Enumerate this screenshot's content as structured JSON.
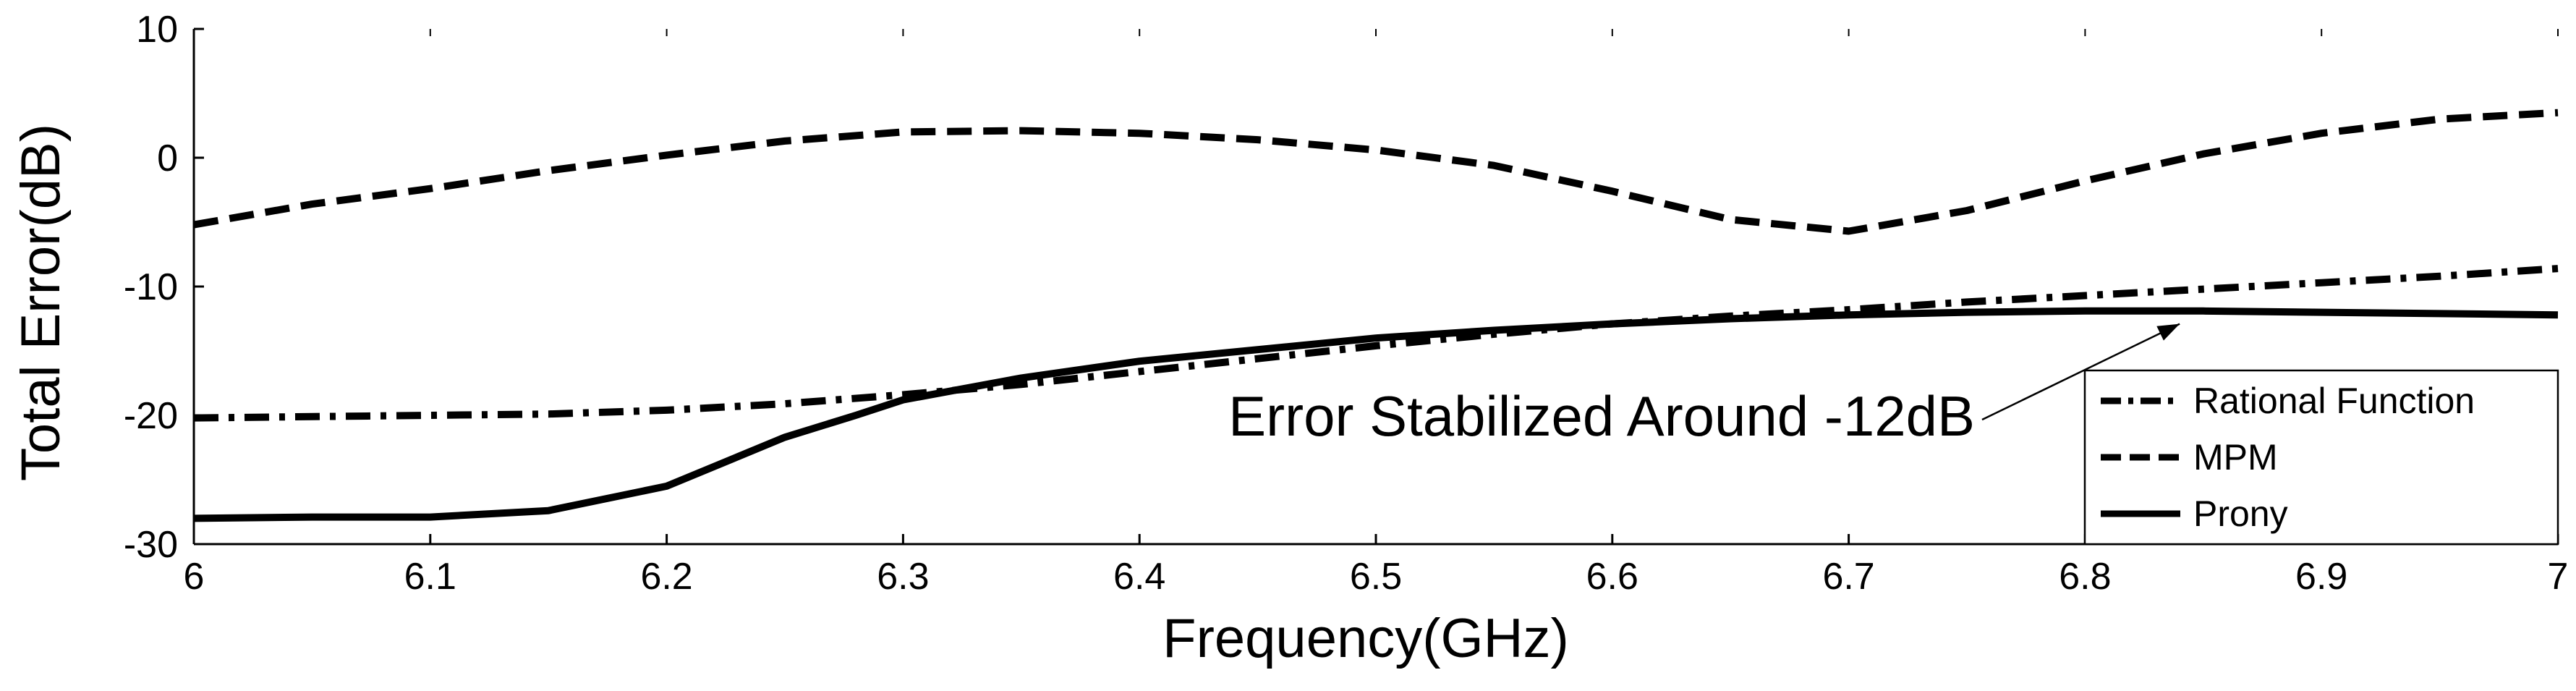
{
  "chart_data": {
    "type": "line",
    "title": "",
    "xlabel": "Frequency(GHz)",
    "ylabel": "Total Error(dB)",
    "xlim": [
      6,
      7
    ],
    "ylim": [
      -30,
      10
    ],
    "xticks": [
      "6",
      "6.1",
      "6.2",
      "6.3",
      "6.4",
      "6.5",
      "6.6",
      "6.7",
      "6.8",
      "6.9",
      "7"
    ],
    "yticks": [
      "10",
      "0",
      "-10",
      "-20",
      "-30"
    ],
    "grid": false,
    "legend_position": "bottom-right",
    "series": [
      {
        "name": "Rational Function",
        "style": "dash-dot",
        "x": [
          6.0,
          6.05,
          6.1,
          6.15,
          6.2,
          6.25,
          6.3,
          6.35,
          6.4,
          6.45,
          6.5,
          6.55,
          6.6,
          6.65,
          6.7,
          6.75,
          6.8,
          6.85,
          6.9,
          6.95,
          7.0
        ],
        "y": [
          -20.2,
          -20.1,
          -20.0,
          -19.9,
          -19.6,
          -19.1,
          -18.4,
          -17.6,
          -16.6,
          -15.6,
          -14.6,
          -13.7,
          -12.9,
          -12.3,
          -11.8,
          -11.2,
          -10.7,
          -10.2,
          -9.7,
          -9.2,
          -8.6
        ]
      },
      {
        "name": "MPM",
        "style": "dash",
        "x": [
          6.0,
          6.05,
          6.1,
          6.15,
          6.2,
          6.25,
          6.3,
          6.35,
          6.4,
          6.45,
          6.5,
          6.55,
          6.6,
          6.65,
          6.7,
          6.75,
          6.8,
          6.85,
          6.9,
          6.95,
          7.0
        ],
        "y": [
          -5.2,
          -3.6,
          -2.4,
          -1.0,
          0.2,
          1.3,
          2.0,
          2.1,
          1.9,
          1.4,
          0.6,
          -0.6,
          -2.6,
          -4.8,
          -5.7,
          -4.1,
          -1.8,
          0.3,
          1.9,
          3.0,
          3.5
        ]
      },
      {
        "name": "Prony",
        "style": "solid",
        "x": [
          6.0,
          6.05,
          6.1,
          6.15,
          6.2,
          6.25,
          6.28,
          6.3,
          6.35,
          6.4,
          6.45,
          6.5,
          6.55,
          6.6,
          6.65,
          6.7,
          6.75,
          6.8,
          6.85,
          6.9,
          6.95,
          7.0
        ],
        "y": [
          -28.0,
          -27.9,
          -27.9,
          -27.4,
          -25.5,
          -21.7,
          -20.0,
          -18.8,
          -17.1,
          -15.8,
          -14.9,
          -14.0,
          -13.4,
          -12.9,
          -12.5,
          -12.2,
          -12.0,
          -11.9,
          -11.9,
          -12.0,
          -12.1,
          -12.2
        ]
      }
    ],
    "annotations": [
      {
        "text": "Error Stabilized Around -12dB",
        "arrow_to": {
          "x": 6.84,
          "y": -12.0
        }
      }
    ]
  }
}
